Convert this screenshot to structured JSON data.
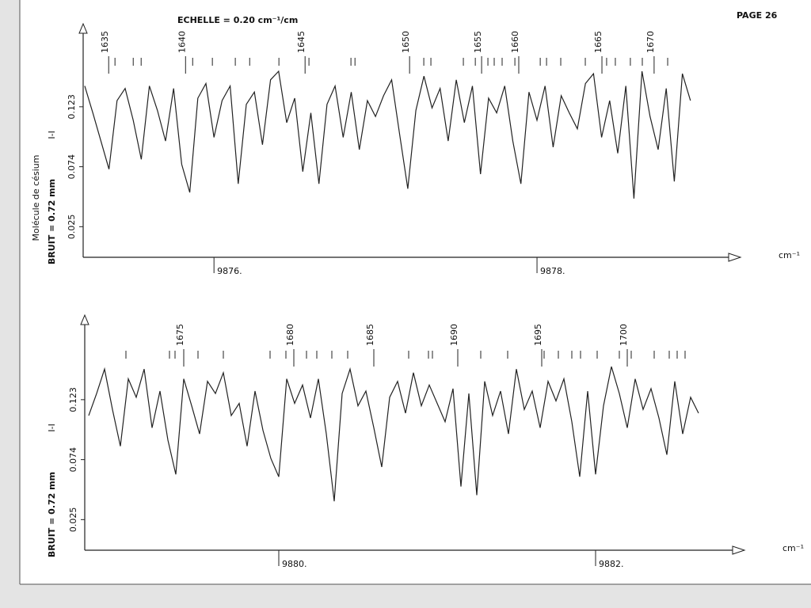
{
  "page": "PAGE 26",
  "title": "ECHELLE = 0.20 cm⁻¹/cm",
  "side_label": "Molécule de césium",
  "chart_data": [
    {
      "type": "line",
      "ylabel": "BRUIT = 0.72 mm",
      "y_annotation": "I-I",
      "xlabel": "cm⁻¹",
      "xlim": [
        9875.19,
        9879.26
      ],
      "ylim": [
        0,
        0.185
      ],
      "xticks": [
        {
          "value": 9876,
          "label": "9876."
        },
        {
          "value": 9878,
          "label": "9878."
        }
      ],
      "yticks": [
        0.025,
        0.074,
        0.123
      ],
      "x": [
        9875.2,
        9875.25,
        9875.3,
        9875.35,
        9875.4,
        9875.45,
        9875.5,
        9875.55,
        9875.6,
        9875.65,
        9875.7,
        9875.75,
        9875.8,
        9875.85,
        9875.9,
        9875.95,
        9876.0,
        9876.05,
        9876.1,
        9876.15,
        9876.2,
        9876.25,
        9876.3,
        9876.35,
        9876.4,
        9876.45,
        9876.5,
        9876.55,
        9876.6,
        9876.65,
        9876.7,
        9876.75,
        9876.8,
        9876.85,
        9876.9,
        9876.95,
        9877.0,
        9877.05,
        9877.1,
        9877.15,
        9877.2,
        9877.25,
        9877.3,
        9877.35,
        9877.4,
        9877.45,
        9877.5,
        9877.55,
        9877.6,
        9877.65,
        9877.7,
        9877.75,
        9877.8,
        9877.85,
        9877.9,
        9877.95,
        9878.0,
        9878.05,
        9878.1,
        9878.15,
        9878.2,
        9878.25,
        9878.3,
        9878.35,
        9878.4,
        9878.45,
        9878.5,
        9878.55,
        9878.6,
        9878.65,
        9878.7,
        9878.75,
        9878.8,
        9878.85,
        9878.9,
        9878.95
      ],
      "series": [
        {
          "color": "#222222",
          "values": [
            0.14,
            0.118,
            0.095,
            0.072,
            0.128,
            0.138,
            0.112,
            0.08,
            0.14,
            0.12,
            0.095,
            0.138,
            0.076,
            0.053,
            0.13,
            0.142,
            0.098,
            0.128,
            0.14,
            0.06,
            0.125,
            0.135,
            0.092,
            0.145,
            0.152,
            0.11,
            0.13,
            0.07,
            0.118,
            0.06,
            0.125,
            0.14,
            0.098,
            0.135,
            0.088,
            0.128,
            0.115,
            0.132,
            0.145,
            0.1,
            0.056,
            0.12,
            0.148,
            0.122,
            0.138,
            0.095,
            0.145,
            0.11,
            0.14,
            0.068,
            0.13,
            0.118,
            0.14,
            0.095,
            0.06,
            0.135,
            0.112,
            0.14,
            0.09,
            0.132,
            0.118,
            0.105,
            0.142,
            0.15,
            0.098,
            0.128,
            0.085,
            0.14,
            0.048,
            0.152,
            0.115,
            0.088,
            0.138,
            0.062,
            0.15,
            0.128
          ]
        }
      ],
      "line_markers": [
        {
          "x": 9875.348,
          "label": "1635"
        },
        {
          "x": 9875.824,
          "label": "1640"
        },
        {
          "x": 9876.564,
          "label": "1645"
        },
        {
          "x": 9877.211,
          "label": "1650"
        },
        {
          "x": 9877.657,
          "label": "1655"
        },
        {
          "x": 9877.887,
          "label": "1660"
        },
        {
          "x": 9878.402,
          "label": "1665"
        },
        {
          "x": 9878.725,
          "label": "1670"
        }
      ],
      "line_ticks": [
        9875.387,
        9875.5,
        9875.549,
        9875.868,
        9875.99,
        9876.132,
        9876.221,
        9876.402,
        9876.588,
        9876.848,
        9876.873,
        9877.299,
        9877.343,
        9877.544,
        9877.618,
        9877.696,
        9877.735,
        9877.784,
        9877.863,
        9878.02,
        9878.059,
        9878.147,
        9878.299,
        9878.431,
        9878.485,
        9878.578,
        9878.652,
        9878.809
      ]
    },
    {
      "type": "line",
      "ylabel": "BRUIT = 0.72 mm",
      "y_annotation": "I-I",
      "xlabel": "cm⁻¹",
      "xlim": [
        9878.775,
        9882.94
      ],
      "ylim": [
        0,
        0.185
      ],
      "xticks": [
        {
          "value": 9880,
          "label": "9880."
        },
        {
          "value": 9882,
          "label": "9882."
        }
      ],
      "yticks": [
        0.025,
        0.074,
        0.123
      ],
      "x": [
        9878.8,
        9878.85,
        9878.9,
        9878.95,
        9879.0,
        9879.05,
        9879.1,
        9879.15,
        9879.2,
        9879.25,
        9879.3,
        9879.35,
        9879.4,
        9879.45,
        9879.5,
        9879.55,
        9879.6,
        9879.65,
        9879.7,
        9879.75,
        9879.8,
        9879.85,
        9879.9,
        9879.95,
        9880.0,
        9880.05,
        9880.1,
        9880.15,
        9880.2,
        9880.25,
        9880.3,
        9880.35,
        9880.4,
        9880.45,
        9880.5,
        9880.55,
        9880.6,
        9880.65,
        9880.7,
        9880.75,
        9880.8,
        9880.85,
        9880.9,
        9880.95,
        9881.0,
        9881.05,
        9881.1,
        9881.15,
        9881.2,
        9881.25,
        9881.3,
        9881.35,
        9881.4,
        9881.45,
        9881.5,
        9881.55,
        9881.6,
        9881.65,
        9881.7,
        9881.75,
        9881.8,
        9881.85,
        9881.9,
        9881.95,
        9882.0,
        9882.05,
        9882.1,
        9882.15,
        9882.2,
        9882.25,
        9882.3,
        9882.35,
        9882.4,
        9882.45,
        9882.5,
        9882.55,
        9882.6,
        9882.65
      ],
      "series": [
        {
          "color": "#222222",
          "values": [
            0.11,
            0.128,
            0.148,
            0.115,
            0.085,
            0.14,
            0.125,
            0.148,
            0.1,
            0.13,
            0.09,
            0.062,
            0.14,
            0.118,
            0.095,
            0.138,
            0.128,
            0.145,
            0.11,
            0.12,
            0.085,
            0.13,
            0.098,
            0.075,
            0.06,
            0.14,
            0.12,
            0.135,
            0.108,
            0.14,
            0.095,
            0.04,
            0.128,
            0.148,
            0.118,
            0.13,
            0.1,
            0.068,
            0.125,
            0.138,
            0.112,
            0.145,
            0.118,
            0.135,
            0.12,
            0.105,
            0.132,
            0.052,
            0.128,
            0.045,
            0.138,
            0.11,
            0.13,
            0.095,
            0.148,
            0.115,
            0.13,
            0.1,
            0.138,
            0.122,
            0.14,
            0.105,
            0.06,
            0.13,
            0.062,
            0.118,
            0.15,
            0.128,
            0.1,
            0.14,
            0.115,
            0.132,
            0.108,
            0.078,
            0.138,
            0.095,
            0.125,
            0.112
          ]
        }
      ],
      "line_markers": [
        {
          "x": 9879.4,
          "label": "1675"
        },
        {
          "x": 9880.095,
          "label": "1680"
        },
        {
          "x": 9880.6,
          "label": "1685"
        },
        {
          "x": 9881.13,
          "label": "1690"
        },
        {
          "x": 9881.66,
          "label": "1695"
        },
        {
          "x": 9882.2,
          "label": "1700"
        }
      ],
      "line_ticks": [
        9879.035,
        9879.31,
        9879.345,
        9879.49,
        9879.65,
        9879.945,
        9880.045,
        9880.175,
        9880.24,
        9880.335,
        9880.435,
        9880.82,
        9880.945,
        9880.97,
        9881.275,
        9881.445,
        9881.675,
        9881.765,
        9881.85,
        9881.905,
        9882.01,
        9882.15,
        9882.225,
        9882.37,
        9882.465,
        9882.515,
        9882.565
      ]
    }
  ]
}
